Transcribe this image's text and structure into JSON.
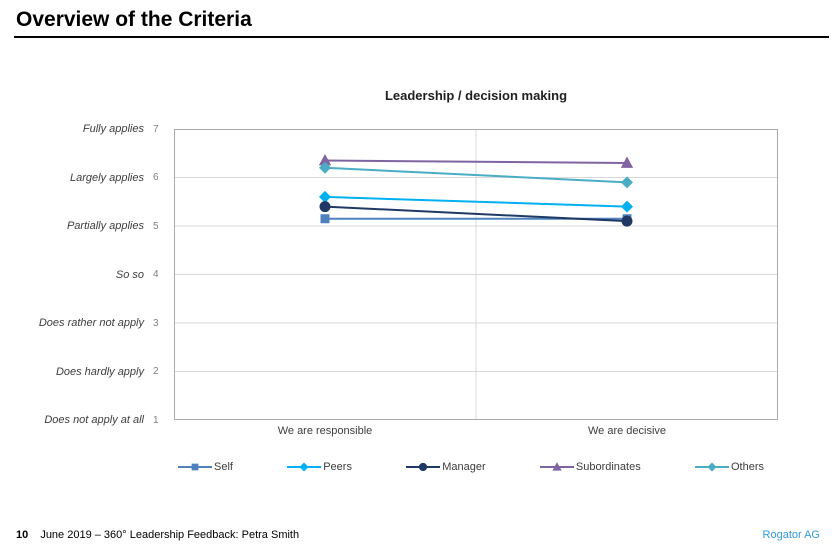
{
  "slide": {
    "title": "Overview of the Criteria"
  },
  "chart_data": {
    "type": "line",
    "title": "Leadership / decision making",
    "categories": [
      "We are responsible",
      "We are decisive"
    ],
    "series": [
      {
        "name": "Self",
        "values": [
          5.15,
          5.15
        ],
        "color": "#4F81BD",
        "marker": "square"
      },
      {
        "name": "Peers",
        "values": [
          5.6,
          5.4
        ],
        "color": "#00B0F0",
        "marker": "diamond"
      },
      {
        "name": "Manager",
        "values": [
          5.4,
          5.1
        ],
        "color": "#1F3864",
        "marker": "circle"
      },
      {
        "name": "Subordinates",
        "values": [
          6.35,
          6.3
        ],
        "color": "#8064A2",
        "marker": "triangle"
      },
      {
        "name": "Others",
        "values": [
          6.2,
          5.9
        ],
        "color": "#4BACC6",
        "marker": "diamond"
      }
    ],
    "y_axis": {
      "min": 1,
      "max": 7,
      "ticks": [
        {
          "value": 7,
          "label": "Fully applies"
        },
        {
          "value": 6,
          "label": "Largely applies"
        },
        {
          "value": 5,
          "label": "Partially applies"
        },
        {
          "value": 4,
          "label": "So so"
        },
        {
          "value": 3,
          "label": "Does rather not apply"
        },
        {
          "value": 2,
          "label": "Does hardly apply"
        },
        {
          "value": 1,
          "label": "Does not apply at all"
        }
      ]
    },
    "grid": true,
    "legend_position": "bottom",
    "grid_color": "#D9D9D9",
    "border_color": "#ABABAB"
  },
  "footer": {
    "page_number": "10",
    "text": "June 2019 – 360° Leadership Feedback: Petra Smith",
    "brand": "Rogator AG",
    "brand_color": "#3399DB"
  }
}
